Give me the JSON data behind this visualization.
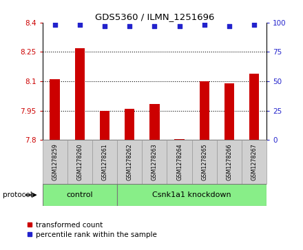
{
  "title": "GDS5360 / ILMN_1251696",
  "samples": [
    "GSM1278259",
    "GSM1278260",
    "GSM1278261",
    "GSM1278262",
    "GSM1278263",
    "GSM1278264",
    "GSM1278265",
    "GSM1278266",
    "GSM1278267"
  ],
  "bar_values": [
    8.11,
    8.27,
    7.95,
    7.96,
    7.985,
    7.803,
    8.1,
    8.09,
    8.14
  ],
  "percentile_values": [
    98,
    98,
    97,
    97,
    97,
    97,
    98,
    97,
    98
  ],
  "ylim": [
    7.8,
    8.4
  ],
  "yticks_left": [
    7.8,
    7.95,
    8.1,
    8.25,
    8.4
  ],
  "yticks_right": [
    0,
    25,
    50,
    75,
    100
  ],
  "bar_color": "#cc0000",
  "dot_color": "#2222cc",
  "control_count": 3,
  "knockdown_count": 6,
  "control_label": "control",
  "knockdown_label": "Csnk1a1 knockdown",
  "protocol_label": "protocol",
  "legend_bar_label": "transformed count",
  "legend_dot_label": "percentile rank within the sample",
  "group_color": "#88ee88",
  "tick_label_color_left": "#cc0000",
  "tick_label_color_right": "#2222cc",
  "base_value": 7.8,
  "fig_width": 4.4,
  "fig_height": 3.63,
  "dpi": 100
}
